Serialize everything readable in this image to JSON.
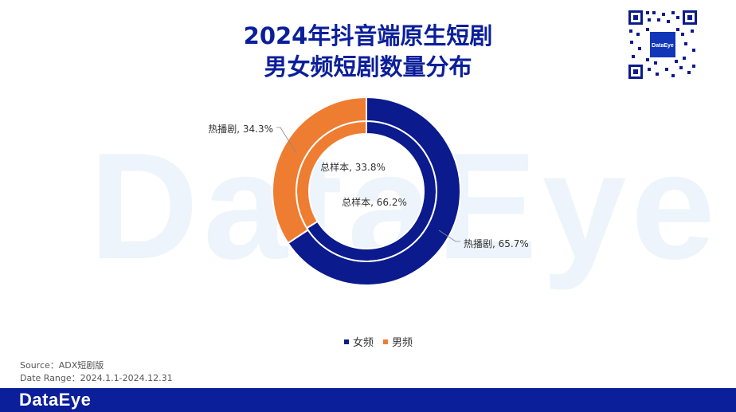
{
  "title_line1": "2024年抖音端原生短剧",
  "title_line2": "男女频短剧数量分布",
  "watermark": "DataEye",
  "qr_logo": "DataEye",
  "colors": {
    "female": "#0b1a8c",
    "male": "#ee7d31",
    "title": "#0b1f9a",
    "footer": "#0b1f9a"
  },
  "chart_data": {
    "type": "pie",
    "subtype": "nested-donut",
    "categories": [
      "女频",
      "男频"
    ],
    "series": [
      {
        "name": "总样本",
        "values": [
          66.2,
          33.8
        ]
      },
      {
        "name": "热播剧",
        "values": [
          65.7,
          34.3
        ]
      }
    ],
    "data_labels": {
      "inner_female": "总样本, 66.2%",
      "inner_male": "总样本, 33.8%",
      "outer_female": "热播剧, 65.7%",
      "outer_male": "热播剧, 34.3%"
    },
    "legend": [
      "女频",
      "男频"
    ],
    "legend_position": "bottom"
  },
  "source_line": "Source：ADX短剧版",
  "date_line": "Date Range：2024.1.1-2024.12.31",
  "footer_logo": "DataEye"
}
